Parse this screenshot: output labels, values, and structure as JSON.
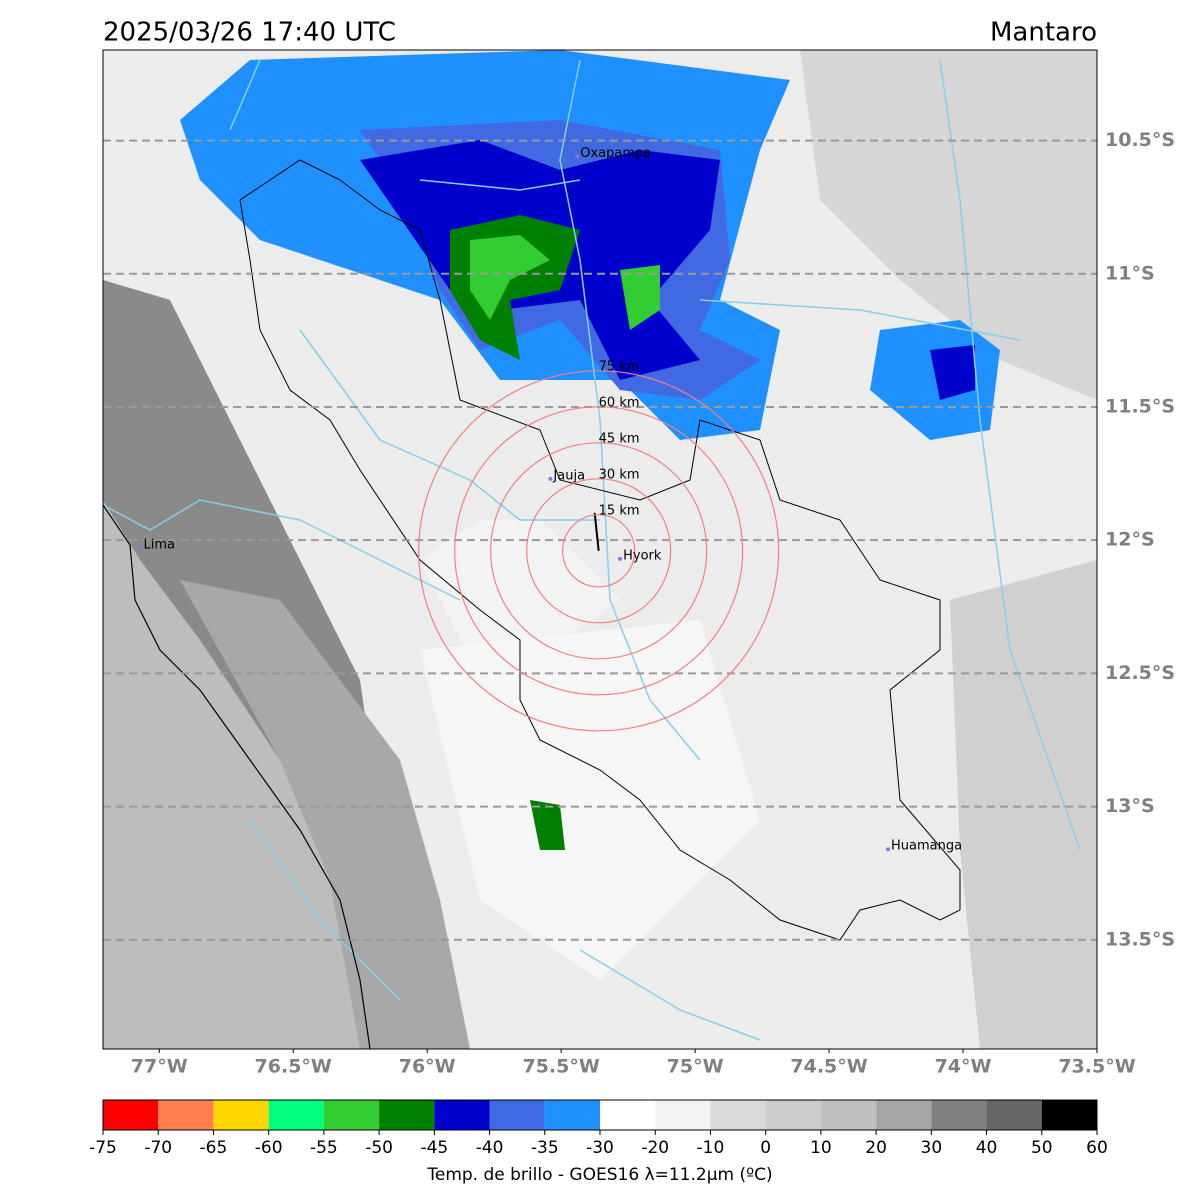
{
  "map": {
    "title": "2025/03/26 17:40 UTC",
    "region": "Mantaro",
    "xlim": [
      -77.21,
      -73.5
    ],
    "ylim": [
      -13.91,
      -10.16
    ],
    "lat_ticks": [
      {
        "value": -10.5,
        "label": "10.5°S"
      },
      {
        "value": -11,
        "label": "11°S"
      },
      {
        "value": -11.5,
        "label": "11.5°S"
      },
      {
        "value": -12,
        "label": "12°S"
      },
      {
        "value": -12.5,
        "label": "12.5°S"
      },
      {
        "value": -13,
        "label": "13°S"
      },
      {
        "value": -13.5,
        "label": "13.5°S"
      }
    ],
    "lon_ticks": [
      {
        "value": -77,
        "label": "77°W"
      },
      {
        "value": -76.5,
        "label": "76.5°W"
      },
      {
        "value": -76,
        "label": "76°W"
      },
      {
        "value": -75.5,
        "label": "75.5°W"
      },
      {
        "value": -75,
        "label": "75°W"
      },
      {
        "value": -74.5,
        "label": "74.5°W"
      },
      {
        "value": -74,
        "label": "74°W"
      },
      {
        "value": -73.5,
        "label": "73.5°W"
      }
    ],
    "cities": [
      {
        "name": "Oxapampa",
        "lon": -75.44,
        "lat": -10.56
      },
      {
        "name": "Jauja",
        "lon": -75.54,
        "lat": -11.77
      },
      {
        "name": "Hyork",
        "lon": -75.28,
        "lat": -12.07
      },
      {
        "name": "Lima",
        "lon": -77.07,
        "lat": -12.03
      },
      {
        "name": "Huamanga",
        "lon": -74.28,
        "lat": -13.16
      }
    ],
    "radar": {
      "lon": -75.36,
      "lat": -12.04
    },
    "rings": [
      {
        "value": 15,
        "label": "15 km"
      },
      {
        "value": 30,
        "label": "30 km"
      },
      {
        "value": 45,
        "label": "45 km"
      },
      {
        "value": 60,
        "label": "60 km"
      },
      {
        "value": 75,
        "label": "75 km"
      }
    ],
    "ring_color": "#f08080",
    "colorbar": {
      "ticks": [
        -75,
        -70,
        -65,
        -60,
        -55,
        -50,
        -45,
        -40,
        -35,
        -30,
        -20,
        -10,
        0,
        10,
        20,
        30,
        40,
        50,
        60
      ],
      "colors": [
        "#ff0000",
        "#ff7f50",
        "#ffd700",
        "#00ff7f",
        "#32cd32",
        "#008000",
        "#0000cd",
        "#4169e1",
        "#1e90ff",
        "#ffffff",
        "#f2f2f2",
        "#d9d9d9",
        "#cccccc",
        "#bfbfbf",
        "#a6a6a6",
        "#808080",
        "#666666",
        "#000000"
      ],
      "label": "Temp. de brillo - GOES16 λ=11.2μm (ºC)"
    }
  }
}
